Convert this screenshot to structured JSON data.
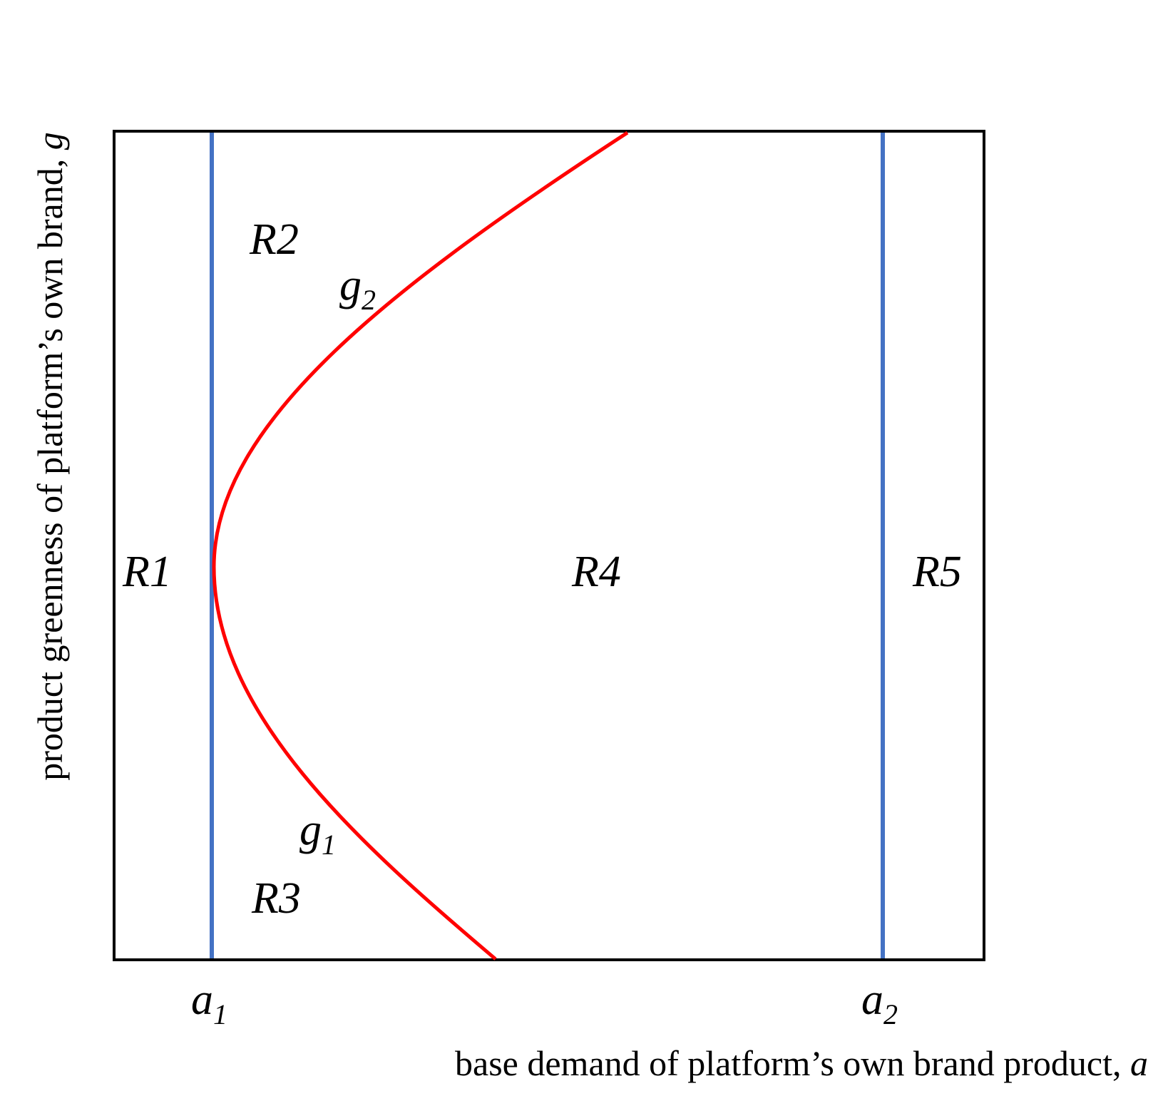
{
  "axes": {
    "x_label": "base demand of platform’s own brand product,",
    "x_var": "a",
    "y_label": "product greenness of platform’s own brand,",
    "y_var": "g"
  },
  "thresholds": [
    {
      "base": "a",
      "sub": "1"
    },
    {
      "base": "a",
      "sub": "2"
    }
  ],
  "curves": [
    {
      "base": "g",
      "sub": "2"
    },
    {
      "base": "g",
      "sub": "1"
    }
  ],
  "regions": {
    "r1": "R1",
    "r2": "R2",
    "r3": "R3",
    "r4": "R4",
    "r5": "R5"
  },
  "colors": {
    "threshold_line": "#4472c4",
    "boundary_curve": "#ff0000",
    "frame": "#000000"
  }
}
